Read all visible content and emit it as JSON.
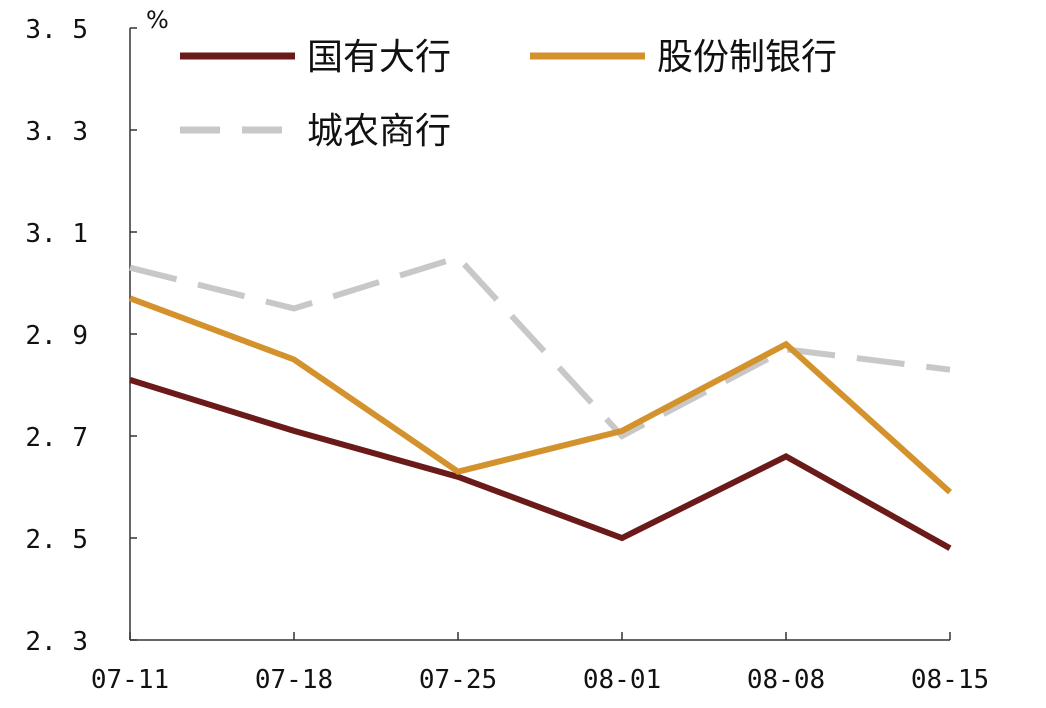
{
  "chart_data": {
    "type": "line",
    "unit": "%",
    "categories": [
      "07-11",
      "07-18",
      "07-25",
      "08-01",
      "08-08",
      "08-15"
    ],
    "ylim": [
      2.3,
      3.5
    ],
    "yticks": [
      "3.5",
      "3.3",
      "3.1",
      "2.9",
      "2.7",
      "2.5",
      "2.3"
    ],
    "series": [
      {
        "name": "国有大行",
        "color": "#6b1a1a",
        "dash": "solid",
        "values": [
          2.81,
          2.71,
          2.62,
          2.5,
          2.66,
          2.48
        ]
      },
      {
        "name": "股份制银行",
        "color": "#d4922c",
        "dash": "solid",
        "values": [
          2.97,
          2.85,
          2.63,
          2.71,
          2.88,
          2.59
        ]
      },
      {
        "name": "城农商行",
        "color": "#c8c8c8",
        "dash": "dashed",
        "values": [
          3.03,
          2.95,
          3.05,
          2.7,
          2.87,
          2.83
        ]
      }
    ],
    "grid": false,
    "legend_position": "top"
  }
}
